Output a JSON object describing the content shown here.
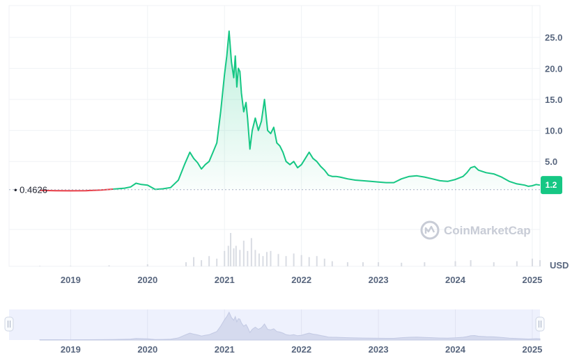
{
  "chart_data": {
    "type": "area",
    "currency_label": "USD",
    "reference_value": 0.4626,
    "reference_label": "0.4626",
    "current_value_label": "1.2",
    "brand": "CoinMarketCap",
    "colors": {
      "up": "#16c784",
      "down": "#ea3943",
      "badge": "#16c784",
      "grid": "#eff2f5",
      "navigator": "#eef1fd"
    },
    "y_ticks": [
      "25.0",
      "20.0",
      "15.0",
      "10.0",
      "5.0"
    ],
    "y_tick_values": [
      25,
      20,
      15,
      10,
      5
    ],
    "ylim": [
      -0.35,
      29
    ],
    "x_ticks": [
      "2019",
      "2020",
      "2021",
      "2022",
      "2023",
      "2024",
      "2025"
    ],
    "x_tick_values": [
      2019,
      2020,
      2021,
      2022,
      2023,
      2024,
      2025
    ],
    "xlim": [
      2018.2,
      2025.1
    ],
    "navigator_x_ticks": [
      "2019",
      "2020",
      "2021",
      "2022",
      "2023",
      "2024",
      "2025"
    ],
    "series": [
      {
        "x": [
          2018.6,
          2018.8,
          2019.0,
          2019.2,
          2019.4,
          2019.55,
          2019.7,
          2019.78,
          2019.85,
          2019.92,
          2020.0,
          2020.1,
          2020.2,
          2020.3,
          2020.4,
          2020.48,
          2020.55,
          2020.6,
          2020.65,
          2020.7,
          2020.75,
          2020.8,
          2020.85,
          2020.9,
          2020.95,
          2021.0,
          2021.03,
          2021.06,
          2021.09,
          2021.12,
          2021.14,
          2021.16,
          2021.18,
          2021.2,
          2021.22,
          2021.25,
          2021.28,
          2021.3,
          2021.33,
          2021.36,
          2021.4,
          2021.44,
          2021.48,
          2021.52,
          2021.56,
          2021.6,
          2021.64,
          2021.68,
          2021.72,
          2021.76,
          2021.8,
          2021.85,
          2021.9,
          2021.95,
          2022.0,
          2022.05,
          2022.1,
          2022.15,
          2022.2,
          2022.25,
          2022.3,
          2022.35,
          2022.4,
          2022.45,
          2022.5,
          2022.6,
          2022.7,
          2022.8,
          2022.9,
          2023.0,
          2023.1,
          2023.2,
          2023.3,
          2023.4,
          2023.5,
          2023.6,
          2023.7,
          2023.8,
          2023.9,
          2024.0,
          2024.1,
          2024.15,
          2024.2,
          2024.25,
          2024.3,
          2024.4,
          2024.5,
          2024.6,
          2024.7,
          2024.8,
          2024.9,
          2024.95,
          2025.0,
          2025.05,
          2025.1
        ],
        "y": [
          0.35,
          0.3,
          0.28,
          0.3,
          0.4,
          0.55,
          0.7,
          0.9,
          1.5,
          1.3,
          1.2,
          0.5,
          0.6,
          0.8,
          2.0,
          4.5,
          6.5,
          5.5,
          4.8,
          3.8,
          4.5,
          5.0,
          6.5,
          8.0,
          13.0,
          19.0,
          22.0,
          26.0,
          21.0,
          18.5,
          22.0,
          17.0,
          20.0,
          19.5,
          16.0,
          13.0,
          14.5,
          12.0,
          7.0,
          10.0,
          12.0,
          10.0,
          11.5,
          15.0,
          10.0,
          9.5,
          10.5,
          8.0,
          7.5,
          6.5,
          5.0,
          4.5,
          5.0,
          4.0,
          4.5,
          5.5,
          6.5,
          5.5,
          5.0,
          4.2,
          3.6,
          2.8,
          2.6,
          2.6,
          2.5,
          2.2,
          2.0,
          1.9,
          1.8,
          1.7,
          1.6,
          1.6,
          2.2,
          2.6,
          2.7,
          2.5,
          2.2,
          1.9,
          1.8,
          2.1,
          2.6,
          3.2,
          4.0,
          4.2,
          3.6,
          3.2,
          3.0,
          2.5,
          1.8,
          1.4,
          1.2,
          1.0,
          1.1,
          1.3,
          1.2
        ]
      }
    ],
    "volume_x": [
      2018.6,
      2019.0,
      2019.5,
      2020.0,
      2020.5,
      2020.6,
      2020.7,
      2020.8,
      2020.9,
      2021.0,
      2021.05,
      2021.08,
      2021.12,
      2021.15,
      2021.2,
      2021.25,
      2021.3,
      2021.35,
      2021.4,
      2021.45,
      2021.5,
      2021.55,
      2021.6,
      2021.7,
      2021.8,
      2021.9,
      2022.0,
      2022.1,
      2022.2,
      2022.3,
      2022.4,
      2022.6,
      2022.8,
      2023.0,
      2023.3,
      2023.6,
      2024.0,
      2024.2,
      2024.5,
      2024.8,
      2025.0,
      2025.1
    ],
    "volume": [
      0.1,
      0.1,
      0.2,
      0.4,
      0.8,
      1.8,
      1.2,
      2.0,
      1.5,
      3.0,
      4.0,
      6.5,
      3.5,
      4.0,
      3.2,
      5.0,
      3.0,
      5.5,
      3.2,
      2.5,
      2.0,
      2.8,
      3.0,
      2.4,
      2.0,
      2.5,
      2.2,
      1.8,
      2.0,
      1.5,
      1.0,
      0.8,
      0.8,
      0.8,
      0.7,
      0.8,
      1.0,
      1.2,
      0.8,
      1.0,
      1.5,
      1.2
    ]
  }
}
